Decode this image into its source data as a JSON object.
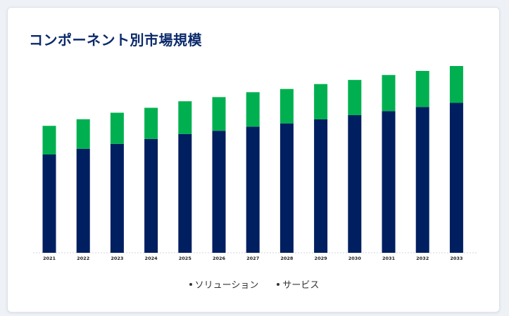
{
  "title": "コンポーネント別市場規模",
  "colors": {
    "solution": "#001f60",
    "service": "#00b050",
    "accent": "#0b2a6b"
  },
  "chart_data": {
    "type": "bar",
    "stacked": true,
    "categories": [
      "2021",
      "2022",
      "2023",
      "2024",
      "2025",
      "2026",
      "2027",
      "2028",
      "2029",
      "2030",
      "2031",
      "2032",
      "2033"
    ],
    "series": [
      {
        "name": "ソリューション",
        "values": [
          12.0,
          12.7,
          13.3,
          13.9,
          14.5,
          14.9,
          15.4,
          15.8,
          16.3,
          16.8,
          17.3,
          17.8,
          18.3
        ]
      },
      {
        "name": "サービス",
        "values": [
          3.5,
          3.6,
          3.8,
          3.8,
          4.0,
          4.1,
          4.2,
          4.2,
          4.3,
          4.3,
          4.4,
          4.4,
          4.5
        ]
      }
    ],
    "ylim": [
      0,
      24
    ],
    "grid": false,
    "legend": "bottom-center"
  },
  "legend": [
    "ソリューション",
    "サービス"
  ]
}
